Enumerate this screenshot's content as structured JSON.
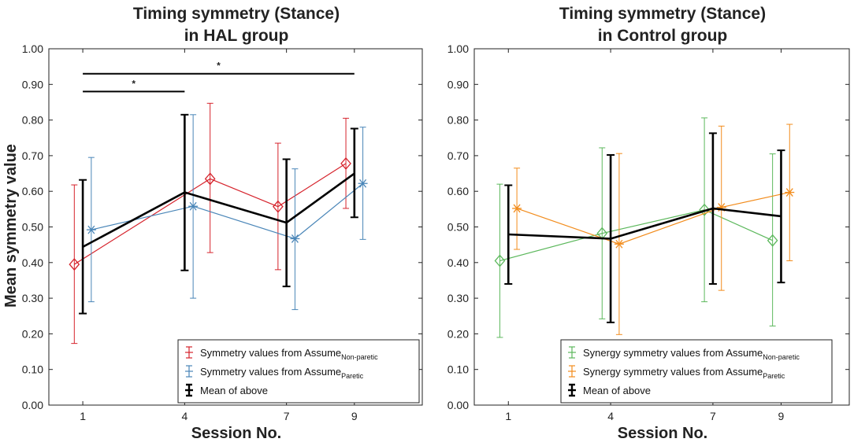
{
  "chart_data": [
    {
      "type": "line",
      "title_lines": [
        "Timing symmetry (Stance)",
        "in HAL group"
      ],
      "xlabel": "Session No.",
      "ylabel": "Mean symmetry value",
      "xlim": [
        0,
        11
      ],
      "ylim": [
        0,
        1.0
      ],
      "x_ticks": [
        1,
        4,
        7,
        9
      ],
      "y_ticks": [
        "0.00",
        "0.10",
        "0.20",
        "0.30",
        "0.40",
        "0.50",
        "0.60",
        "0.70",
        "0.80",
        "0.90",
        "1.00"
      ],
      "series": [
        {
          "name": "Symmetry values from Assume",
          "subscript": "Non-paretic",
          "color": "#d6232c",
          "marker": "diamond",
          "x": [
            0.75,
            4.75,
            6.75,
            8.75
          ],
          "values": [
            0.395,
            0.635,
            0.557,
            0.678
          ],
          "err_low": [
            0.173,
            0.428,
            0.38,
            0.552
          ],
          "err_high": [
            0.618,
            0.847,
            0.735,
            0.805
          ]
        },
        {
          "name": "Symmetry values from Assume",
          "subscript": "Paretic",
          "color": "#4a86b8",
          "marker": "asterisk",
          "x": [
            1.25,
            4.25,
            7.25,
            9.25
          ],
          "values": [
            0.492,
            0.558,
            0.467,
            0.622
          ],
          "err_low": [
            0.29,
            0.3,
            0.268,
            0.465
          ],
          "err_high": [
            0.695,
            0.815,
            0.663,
            0.78
          ]
        },
        {
          "name": "Mean of above",
          "subscript": "",
          "color": "#000000",
          "marker": "none",
          "x": [
            1,
            4,
            7,
            9
          ],
          "values": [
            0.444,
            0.597,
            0.512,
            0.65
          ],
          "err_low": [
            0.257,
            0.378,
            0.333,
            0.527
          ],
          "err_high": [
            0.632,
            0.815,
            0.69,
            0.776
          ]
        }
      ],
      "significance": [
        {
          "from": 1,
          "to": 4,
          "y": 0.88,
          "label": "*"
        },
        {
          "from": 1,
          "to": 9,
          "y": 0.93,
          "label": "*"
        }
      ]
    },
    {
      "type": "line",
      "title_lines": [
        "Timing symmetry (Stance)",
        "in Control group"
      ],
      "xlabel": "Session No.",
      "ylabel": "",
      "xlim": [
        0,
        11
      ],
      "ylim": [
        0,
        1.0
      ],
      "x_ticks": [
        1,
        4,
        7,
        9
      ],
      "y_ticks": [
        "0.00",
        "0.10",
        "0.20",
        "0.30",
        "0.40",
        "0.50",
        "0.60",
        "0.70",
        "0.80",
        "0.90",
        "1.00"
      ],
      "series": [
        {
          "name": "Synergy symmetry values from Assume",
          "subscript": "Non-paretic",
          "color": "#5cb85c",
          "marker": "diamond",
          "x": [
            0.75,
            3.75,
            6.75,
            8.75
          ],
          "values": [
            0.405,
            0.482,
            0.548,
            0.462
          ],
          "err_low": [
            0.19,
            0.242,
            0.29,
            0.222
          ],
          "err_high": [
            0.62,
            0.722,
            0.806,
            0.705
          ]
        },
        {
          "name": "Synergy symmetry values from Assume",
          "subscript": "Paretic",
          "color": "#f28c1c",
          "marker": "asterisk",
          "x": [
            1.25,
            4.25,
            7.25,
            9.25
          ],
          "values": [
            0.552,
            0.452,
            0.555,
            0.597
          ],
          "err_low": [
            0.437,
            0.198,
            0.322,
            0.405
          ],
          "err_high": [
            0.665,
            0.706,
            0.783,
            0.788
          ]
        },
        {
          "name": "Mean of above",
          "subscript": "",
          "color": "#000000",
          "marker": "none",
          "x": [
            1,
            4,
            7,
            9
          ],
          "values": [
            0.479,
            0.467,
            0.552,
            0.53
          ],
          "err_low": [
            0.34,
            0.232,
            0.34,
            0.344
          ],
          "err_high": [
            0.617,
            0.702,
            0.763,
            0.715
          ]
        }
      ],
      "significance": []
    }
  ]
}
